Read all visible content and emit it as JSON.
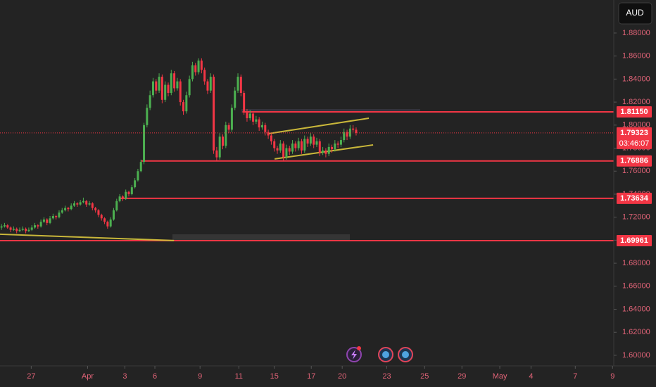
{
  "chart_data": {
    "type": "candlestick",
    "currency": "AUD",
    "up_color": "#4caf50",
    "down_color": "#f23645",
    "grid": false,
    "xlim": [
      -0.5,
      202
    ],
    "ylim": [
      1.5908,
      1.9087
    ],
    "xticks": [
      {
        "value": 9.8,
        "label": "27"
      },
      {
        "value": 28.4,
        "label": "Apr"
      },
      {
        "value": 40.7,
        "label": "3"
      },
      {
        "value": 50.6,
        "label": "6"
      },
      {
        "value": 65.5,
        "label": "9"
      },
      {
        "value": 78.3,
        "label": "11"
      },
      {
        "value": 90,
        "label": "15"
      },
      {
        "value": 102.2,
        "label": "17"
      },
      {
        "value": 112.4,
        "label": "20"
      },
      {
        "value": 127.1,
        "label": "23"
      },
      {
        "value": 139.6,
        "label": "25"
      },
      {
        "value": 151.9,
        "label": "29"
      },
      {
        "value": 164.4,
        "label": "May"
      },
      {
        "value": 174.7,
        "label": "4"
      },
      {
        "value": 189.3,
        "label": "7"
      },
      {
        "value": 201.6,
        "label": "9"
      }
    ],
    "yticks": [
      {
        "value": 1.6,
        "label": "1.60000"
      },
      {
        "value": 1.62,
        "label": "1.62000"
      },
      {
        "value": 1.64,
        "label": "1.64000"
      },
      {
        "value": 1.66,
        "label": "1.66000"
      },
      {
        "value": 1.68,
        "label": "1.68000"
      },
      {
        "value": 1.7,
        "label": "1.70000"
      },
      {
        "value": 1.72,
        "label": "1.72000"
      },
      {
        "value": 1.74,
        "label": "1.74000"
      },
      {
        "value": 1.76,
        "label": "1.76000"
      },
      {
        "value": 1.78,
        "label": "1.78000"
      },
      {
        "value": 1.8,
        "label": "1.80000"
      },
      {
        "value": 1.82,
        "label": "1.82000"
      },
      {
        "value": 1.84,
        "label": "1.84000"
      },
      {
        "value": 1.86,
        "label": "1.86000"
      },
      {
        "value": 1.88,
        "label": "1.88000"
      }
    ],
    "levels": [
      {
        "value": 1.8115,
        "label": "1.81150",
        "from": 79.5,
        "color": "#f23645"
      },
      {
        "value": 1.76886,
        "label": "1.76886",
        "from": 46,
        "color": "#f23645"
      },
      {
        "value": 1.73634,
        "label": "1.73634",
        "from": 38.8,
        "color": "#f23645"
      },
      {
        "value": 1.69961,
        "label": "1.69961",
        "from": -0.5,
        "color": "#f23645"
      }
    ],
    "trendlines": [
      {
        "from": [
          88.2,
          1.7926
        ],
        "to": [
          121.2,
          1.806
        ],
        "color": "#c9b73a"
      },
      {
        "from": [
          90.1,
          1.7706
        ],
        "to": [
          122.6,
          1.7828
        ],
        "color": "#c9b73a"
      },
      {
        "from": [
          -0.5,
          1.7052
        ],
        "to": [
          56.9,
          1.6997
        ],
        "color": "#c9b73a"
      }
    ],
    "countdown": "03:46:07",
    "ohlc": [
      [
        1.711,
        1.714,
        1.709,
        1.712
      ],
      [
        1.712,
        1.715,
        1.711,
        1.713
      ],
      [
        1.713,
        1.714,
        1.71,
        1.711
      ],
      [
        1.711,
        1.712,
        1.707,
        1.709
      ],
      [
        1.709,
        1.712,
        1.708,
        1.71
      ],
      [
        1.71,
        1.711,
        1.706,
        1.708
      ],
      [
        1.708,
        1.711,
        1.707,
        1.709
      ],
      [
        1.709,
        1.712,
        1.708,
        1.71
      ],
      [
        1.71,
        1.711,
        1.706,
        1.708
      ],
      [
        1.708,
        1.711,
        1.707,
        1.709
      ],
      [
        1.709,
        1.713,
        1.708,
        1.711
      ],
      [
        1.711,
        1.715,
        1.71,
        1.713
      ],
      [
        1.713,
        1.714,
        1.71,
        1.712
      ],
      [
        1.712,
        1.718,
        1.711,
        1.716
      ],
      [
        1.716,
        1.72,
        1.715,
        1.718
      ],
      [
        1.718,
        1.719,
        1.713,
        1.715
      ],
      [
        1.715,
        1.721,
        1.714,
        1.719
      ],
      [
        1.719,
        1.723,
        1.718,
        1.721
      ],
      [
        1.721,
        1.722,
        1.718,
        1.72
      ],
      [
        1.72,
        1.726,
        1.719,
        1.724
      ],
      [
        1.724,
        1.728,
        1.723,
        1.726
      ],
      [
        1.726,
        1.73,
        1.725,
        1.728
      ],
      [
        1.728,
        1.729,
        1.725,
        1.727
      ],
      [
        1.727,
        1.732,
        1.726,
        1.73
      ],
      [
        1.73,
        1.734,
        1.729,
        1.732
      ],
      [
        1.732,
        1.733,
        1.729,
        1.731
      ],
      [
        1.731,
        1.735,
        1.73,
        1.733
      ],
      [
        1.733,
        1.737,
        1.732,
        1.734
      ],
      [
        1.734,
        1.735,
        1.729,
        1.731
      ],
      [
        1.731,
        1.734,
        1.73,
        1.732
      ],
      [
        1.732,
        1.733,
        1.726,
        1.728
      ],
      [
        1.728,
        1.729,
        1.724,
        1.726
      ],
      [
        1.726,
        1.727,
        1.72,
        1.722
      ],
      [
        1.722,
        1.723,
        1.717,
        1.719
      ],
      [
        1.719,
        1.72,
        1.714,
        1.716
      ],
      [
        1.716,
        1.717,
        1.71,
        1.712
      ],
      [
        1.712,
        1.72,
        1.711,
        1.718
      ],
      [
        1.718,
        1.728,
        1.717,
        1.726
      ],
      [
        1.726,
        1.736,
        1.725,
        1.734
      ],
      [
        1.734,
        1.74,
        1.733,
        1.738
      ],
      [
        1.738,
        1.739,
        1.734,
        1.736
      ],
      [
        1.736,
        1.744,
        1.735,
        1.742
      ],
      [
        1.742,
        1.743,
        1.738,
        1.74
      ],
      [
        1.74,
        1.748,
        1.739,
        1.746
      ],
      [
        1.746,
        1.754,
        1.745,
        1.752
      ],
      [
        1.752,
        1.762,
        1.751,
        1.76
      ],
      [
        1.76,
        1.77,
        1.759,
        1.768
      ],
      [
        1.768,
        1.802,
        1.766,
        1.8
      ],
      [
        1.8,
        1.818,
        1.798,
        1.815
      ],
      [
        1.815,
        1.83,
        1.813,
        1.826
      ],
      [
        1.826,
        1.841,
        1.824,
        1.838
      ],
      [
        1.838,
        1.84,
        1.827,
        1.83
      ],
      [
        1.83,
        1.845,
        1.828,
        1.842
      ],
      [
        1.842,
        1.844,
        1.819,
        1.822
      ],
      [
        1.822,
        1.838,
        1.82,
        1.835
      ],
      [
        1.835,
        1.837,
        1.825,
        1.828
      ],
      [
        1.828,
        1.848,
        1.826,
        1.845
      ],
      [
        1.845,
        1.847,
        1.829,
        1.832
      ],
      [
        1.832,
        1.841,
        1.83,
        1.838
      ],
      [
        1.838,
        1.84,
        1.817,
        1.82
      ],
      [
        1.82,
        1.822,
        1.809,
        1.812
      ],
      [
        1.812,
        1.829,
        1.81,
        1.826
      ],
      [
        1.826,
        1.843,
        1.824,
        1.84
      ],
      [
        1.84,
        1.855,
        1.838,
        1.852
      ],
      [
        1.852,
        1.854,
        1.843,
        1.846
      ],
      [
        1.846,
        1.858,
        1.844,
        1.856
      ],
      [
        1.856,
        1.858,
        1.845,
        1.848
      ],
      [
        1.848,
        1.85,
        1.835,
        1.838
      ],
      [
        1.838,
        1.84,
        1.827,
        1.83
      ],
      [
        1.83,
        1.845,
        1.828,
        1.842
      ],
      [
        1.842,
        1.844,
        1.775,
        1.778
      ],
      [
        1.778,
        1.781,
        1.769,
        1.772
      ],
      [
        1.772,
        1.793,
        1.77,
        1.79
      ],
      [
        1.79,
        1.792,
        1.779,
        1.782
      ],
      [
        1.782,
        1.803,
        1.78,
        1.8
      ],
      [
        1.8,
        1.802,
        1.793,
        1.796
      ],
      [
        1.796,
        1.818,
        1.794,
        1.815
      ],
      [
        1.815,
        1.833,
        1.813,
        1.83
      ],
      [
        1.83,
        1.845,
        1.828,
        1.842
      ],
      [
        1.842,
        1.844,
        1.825,
        1.828
      ],
      [
        1.828,
        1.83,
        1.809,
        1.812
      ],
      [
        1.812,
        1.814,
        1.803,
        1.806
      ],
      [
        1.806,
        1.813,
        1.804,
        1.81
      ],
      [
        1.81,
        1.812,
        1.8,
        1.803
      ],
      [
        1.803,
        1.808,
        1.801,
        1.805
      ],
      [
        1.805,
        1.807,
        1.795,
        1.798
      ],
      [
        1.798,
        1.803,
        1.796,
        1.8
      ],
      [
        1.8,
        1.802,
        1.791,
        1.794
      ],
      [
        1.794,
        1.796,
        1.788,
        1.791
      ],
      [
        1.791,
        1.793,
        1.783,
        1.786
      ],
      [
        1.786,
        1.788,
        1.777,
        1.78
      ],
      [
        1.78,
        1.782,
        1.775,
        1.778
      ],
      [
        1.778,
        1.787,
        1.776,
        1.784
      ],
      [
        1.784,
        1.786,
        1.769,
        1.772
      ],
      [
        1.772,
        1.783,
        1.77,
        1.78
      ],
      [
        1.78,
        1.782,
        1.774,
        1.777
      ],
      [
        1.777,
        1.787,
        1.775,
        1.784
      ],
      [
        1.784,
        1.786,
        1.777,
        1.78
      ],
      [
        1.78,
        1.789,
        1.778,
        1.786
      ],
      [
        1.786,
        1.788,
        1.775,
        1.778
      ],
      [
        1.778,
        1.791,
        1.776,
        1.788
      ],
      [
        1.788,
        1.79,
        1.781,
        1.784
      ],
      [
        1.784,
        1.793,
        1.782,
        1.79
      ],
      [
        1.79,
        1.792,
        1.78,
        1.783
      ],
      [
        1.783,
        1.789,
        1.781,
        1.786
      ],
      [
        1.786,
        1.788,
        1.773,
        1.776
      ],
      [
        1.776,
        1.781,
        1.774,
        1.778
      ],
      [
        1.778,
        1.78,
        1.772,
        1.775
      ],
      [
        1.775,
        1.784,
        1.773,
        1.781
      ],
      [
        1.781,
        1.783,
        1.776,
        1.779
      ],
      [
        1.779,
        1.787,
        1.777,
        1.784
      ],
      [
        1.784,
        1.786,
        1.78,
        1.783
      ],
      [
        1.783,
        1.79,
        1.781,
        1.787
      ],
      [
        1.787,
        1.797,
        1.785,
        1.794
      ],
      [
        1.794,
        1.796,
        1.787,
        1.79
      ],
      [
        1.79,
        1.8,
        1.788,
        1.797
      ],
      [
        1.797,
        1.8,
        1.794,
        1.796
      ],
      [
        1.796,
        1.798,
        1.791,
        1.79323
      ]
    ]
  }
}
